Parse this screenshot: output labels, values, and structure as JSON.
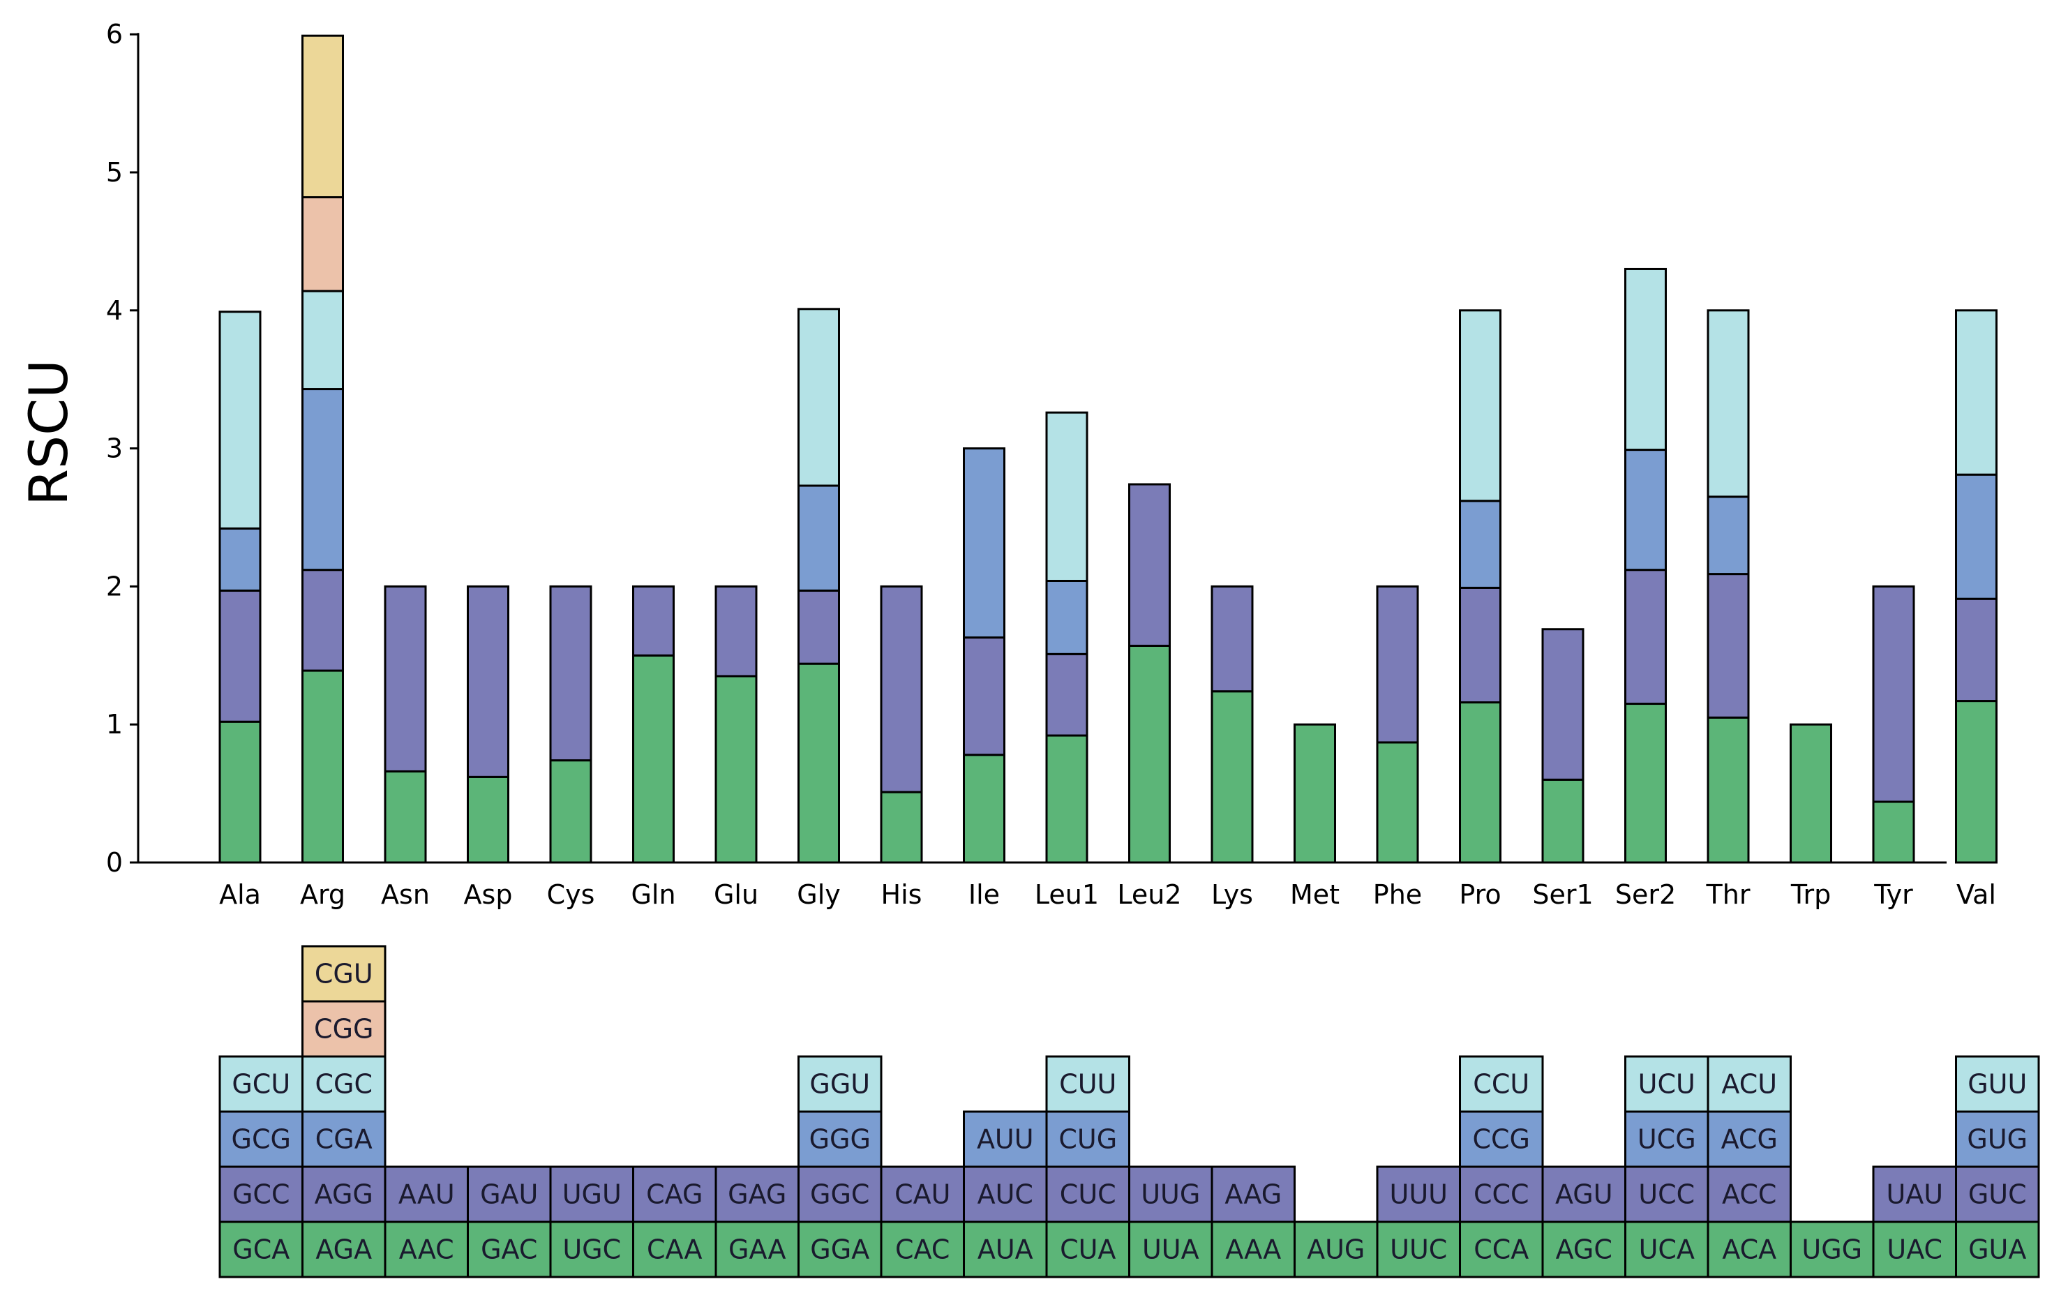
{
  "chart_data": {
    "type": "bar",
    "stacked": true,
    "title": "",
    "xlabel": "",
    "ylabel": "RSCU",
    "ylim": [
      0,
      6
    ],
    "yticks": [
      0,
      1,
      2,
      3,
      4,
      5,
      6
    ],
    "colors": [
      "#5cb578",
      "#7b7cb7",
      "#7b9dd1",
      "#b4e2e6",
      "#ecc2aa",
      "#ecd798"
    ],
    "legend_position": "bottom",
    "categories": [
      "Ala",
      "Arg",
      "Asn",
      "Asp",
      "Cys",
      "Gln",
      "Glu",
      "Gly",
      "His",
      "Ile",
      "Leu1",
      "Leu2",
      "Lys",
      "Met",
      "Phe",
      "Pro",
      "Ser1",
      "Ser2",
      "Thr",
      "Trp",
      "Tyr",
      "Val"
    ],
    "stacks": [
      [
        {
          "codon": "GCA",
          "value": 1.02
        },
        {
          "codon": "GCC",
          "value": 0.95
        },
        {
          "codon": "GCG",
          "value": 0.45
        },
        {
          "codon": "GCU",
          "value": 1.57
        }
      ],
      [
        {
          "codon": "AGA",
          "value": 1.39
        },
        {
          "codon": "AGG",
          "value": 0.73
        },
        {
          "codon": "CGA",
          "value": 1.31
        },
        {
          "codon": "CGC",
          "value": 0.71
        },
        {
          "codon": "CGG",
          "value": 0.68
        },
        {
          "codon": "CGU",
          "value": 1.17
        }
      ],
      [
        {
          "codon": "AAC",
          "value": 0.66
        },
        {
          "codon": "AAU",
          "value": 1.34
        }
      ],
      [
        {
          "codon": "GAC",
          "value": 0.62
        },
        {
          "codon": "GAU",
          "value": 1.38
        }
      ],
      [
        {
          "codon": "UGC",
          "value": 0.74
        },
        {
          "codon": "UGU",
          "value": 1.26
        }
      ],
      [
        {
          "codon": "CAA",
          "value": 1.5
        },
        {
          "codon": "CAG",
          "value": 0.5
        }
      ],
      [
        {
          "codon": "GAA",
          "value": 1.35
        },
        {
          "codon": "GAG",
          "value": 0.65
        }
      ],
      [
        {
          "codon": "GGA",
          "value": 1.44
        },
        {
          "codon": "GGC",
          "value": 0.53
        },
        {
          "codon": "GGG",
          "value": 0.76
        },
        {
          "codon": "GGU",
          "value": 1.28
        }
      ],
      [
        {
          "codon": "CAC",
          "value": 0.51
        },
        {
          "codon": "CAU",
          "value": 1.49
        }
      ],
      [
        {
          "codon": "AUA",
          "value": 0.78
        },
        {
          "codon": "AUC",
          "value": 0.85
        },
        {
          "codon": "AUU",
          "value": 1.37
        }
      ],
      [
        {
          "codon": "CUA",
          "value": 0.92
        },
        {
          "codon": "CUC",
          "value": 0.59
        },
        {
          "codon": "CUG",
          "value": 0.53
        },
        {
          "codon": "CUU",
          "value": 1.22
        }
      ],
      [
        {
          "codon": "UUA",
          "value": 1.57
        },
        {
          "codon": "UUG",
          "value": 1.17
        }
      ],
      [
        {
          "codon": "AAA",
          "value": 1.24
        },
        {
          "codon": "AAG",
          "value": 0.76
        }
      ],
      [
        {
          "codon": "AUG",
          "value": 1.0
        }
      ],
      [
        {
          "codon": "UUC",
          "value": 0.87
        },
        {
          "codon": "UUU",
          "value": 1.13
        }
      ],
      [
        {
          "codon": "CCA",
          "value": 1.16
        },
        {
          "codon": "CCC",
          "value": 0.83
        },
        {
          "codon": "CCG",
          "value": 0.63
        },
        {
          "codon": "CCU",
          "value": 1.38
        }
      ],
      [
        {
          "codon": "AGC",
          "value": 0.6
        },
        {
          "codon": "AGU",
          "value": 1.09
        }
      ],
      [
        {
          "codon": "UCA",
          "value": 1.15
        },
        {
          "codon": "UCC",
          "value": 0.97
        },
        {
          "codon": "UCG",
          "value": 0.87
        },
        {
          "codon": "UCU",
          "value": 1.31
        }
      ],
      [
        {
          "codon": "ACA",
          "value": 1.05
        },
        {
          "codon": "ACC",
          "value": 1.04
        },
        {
          "codon": "ACG",
          "value": 0.56
        },
        {
          "codon": "ACU",
          "value": 1.35
        }
      ],
      [
        {
          "codon": "UGG",
          "value": 1.0
        }
      ],
      [
        {
          "codon": "UAC",
          "value": 0.44
        },
        {
          "codon": "UAU",
          "value": 1.56
        }
      ],
      [
        {
          "codon": "GUA",
          "value": 1.17
        },
        {
          "codon": "GUC",
          "value": 0.74
        },
        {
          "codon": "GUG",
          "value": 0.9
        },
        {
          "codon": "GUU",
          "value": 1.19
        }
      ]
    ]
  }
}
